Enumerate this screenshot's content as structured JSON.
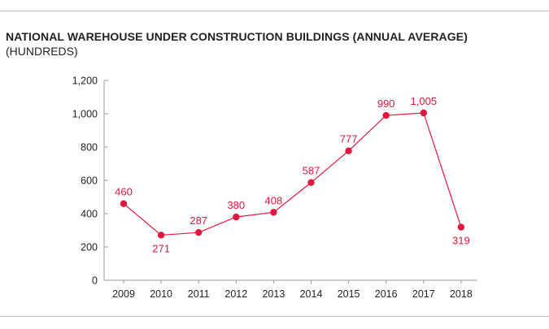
{
  "chart_data": {
    "type": "line",
    "title": "NATIONAL WAREHOUSE UNDER CONSTRUCTION BUILDINGS (ANNUAL AVERAGE)",
    "subtitle": "(HUNDREDS)",
    "xlabel": "",
    "ylabel": "",
    "categories": [
      "2009",
      "2010",
      "2011",
      "2012",
      "2013",
      "2014",
      "2015",
      "2016",
      "2017",
      "2018"
    ],
    "series": [
      {
        "values": [
          460,
          271,
          287,
          380,
          408,
          587,
          777,
          990,
          1005,
          319
        ],
        "data_labels": [
          "460",
          "271",
          "287",
          "380",
          "408",
          "587",
          "777",
          "990",
          "1,005",
          "319"
        ]
      }
    ],
    "ylim": [
      0,
      1200
    ],
    "yticks": [
      0,
      200,
      400,
      600,
      800,
      1000,
      1200
    ],
    "ytick_labels": [
      "0",
      "200",
      "400",
      "600",
      "800",
      "1,000",
      "1,200"
    ],
    "grid": false,
    "legend": "none",
    "colors": {
      "line": "#e0193c",
      "marker": "#e0193c",
      "axis": "#9a9a9a",
      "rule": "#bdbdbd"
    }
  }
}
